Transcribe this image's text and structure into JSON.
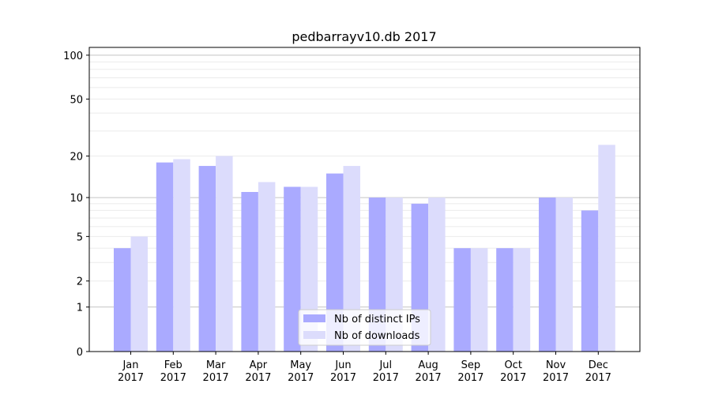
{
  "chart_data": {
    "type": "bar",
    "title": "pedbarrayv10.db 2017",
    "xlabel": "",
    "ylabel": "",
    "yscale": "log(1+y)",
    "ylim": [
      0,
      113
    ],
    "yticks": [
      0,
      1,
      2,
      5,
      10,
      20,
      50,
      100
    ],
    "grid": true,
    "legend_position": "bottom-center",
    "categories": [
      [
        "Jan",
        "2017"
      ],
      [
        "Feb",
        "2017"
      ],
      [
        "Mar",
        "2017"
      ],
      [
        "Apr",
        "2017"
      ],
      [
        "May",
        "2017"
      ],
      [
        "Jun",
        "2017"
      ],
      [
        "Jul",
        "2017"
      ],
      [
        "Aug",
        "2017"
      ],
      [
        "Sep",
        "2017"
      ],
      [
        "Oct",
        "2017"
      ],
      [
        "Nov",
        "2017"
      ],
      [
        "Dec",
        "2017"
      ]
    ],
    "series": [
      {
        "name": "Nb of distinct IPs",
        "color": "#aaaaff",
        "values": [
          4,
          18,
          17,
          11,
          12,
          15,
          10,
          9,
          4,
          4,
          10,
          8
        ]
      },
      {
        "name": "Nb of downloads",
        "color": "#dcdcfc",
        "values": [
          5,
          19,
          20,
          13,
          12,
          17,
          10,
          10,
          4,
          4,
          10,
          24
        ]
      }
    ]
  }
}
